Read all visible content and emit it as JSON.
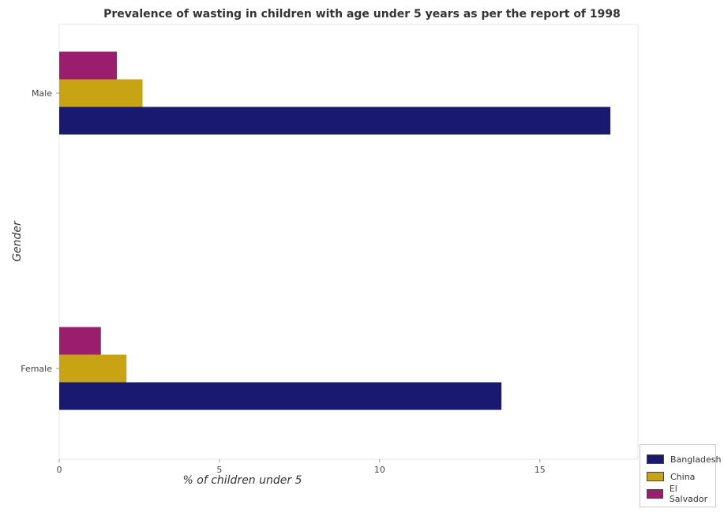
{
  "title": "Prevalence of wasting in children with age under 5 years as per the report of 1998",
  "chart_data": {
    "type": "bar",
    "orientation": "horizontal",
    "title": "Prevalence of wasting in children with age under 5 years as per the report of 1998",
    "xlabel": "% of children under 5",
    "ylabel": "Gender",
    "categories": [
      "Female",
      "Male"
    ],
    "series": [
      {
        "name": "Bangladesh",
        "color": "#191970",
        "values": [
          13.8,
          17.2
        ]
      },
      {
        "name": "China",
        "color": "#c8a415",
        "values": [
          2.1,
          2.6
        ]
      },
      {
        "name": "El Salvador",
        "color": "#9b1d6e",
        "values": [
          1.3,
          1.8
        ]
      }
    ],
    "xlim": [
      0,
      18.06
    ],
    "xticks": [
      0,
      5,
      10,
      15
    ],
    "xtick_labels": [
      "0",
      "5",
      "10",
      "15"
    ],
    "grid": false,
    "legend_position": "bottom-right"
  }
}
